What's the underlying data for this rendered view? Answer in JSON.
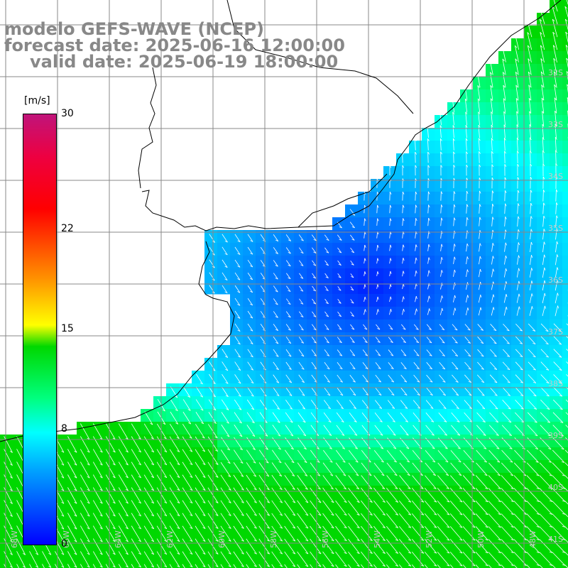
{
  "title": {
    "line1": "modelo GEFS-WAVE (NCEP)",
    "line2": "forecast date: 2025-06-16 12:00:00",
    "line3": "valid date: 2025-06-19 18:00:00"
  },
  "colorbar": {
    "unit": "[m/s]",
    "ticks": [
      {
        "value": 30,
        "label": "30"
      },
      {
        "value": 22,
        "label": "22"
      },
      {
        "value": 15,
        "label": "15"
      },
      {
        "value": 8,
        "label": "8"
      },
      {
        "value": 0,
        "label": "0"
      }
    ],
    "min": 0,
    "max": 30
  },
  "latitude_labels": [
    "32S",
    "33S",
    "34S",
    "35S",
    "36S",
    "37S",
    "38S",
    "39S",
    "40S",
    "41S"
  ],
  "longitude_labels": [
    "68W",
    "66W",
    "64W",
    "62W",
    "60W",
    "58W",
    "56W",
    "54W",
    "52W",
    "50W",
    "48W"
  ],
  "field": {
    "variable": "wind speed",
    "units": "m/s",
    "land_color": "#ffffff",
    "coastline_color": "#000000",
    "grid_color": "#888888",
    "arrow_color": "#ffffff"
  }
}
